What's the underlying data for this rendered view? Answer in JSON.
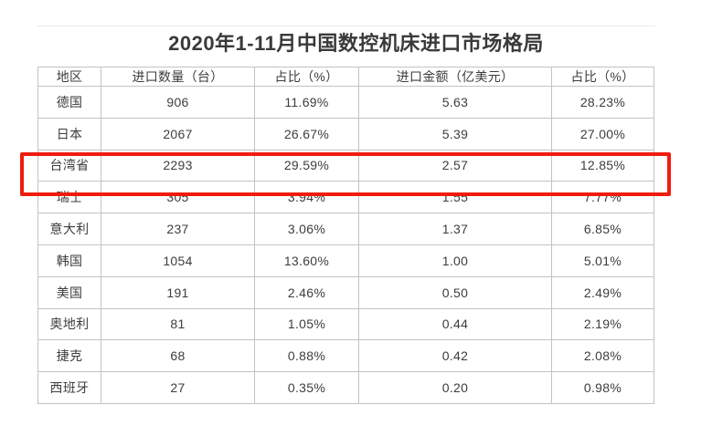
{
  "title": "2020年1-11月中国数控机床进口市场格局",
  "colors": {
    "highlight_border": "#ee1c0f",
    "table_border": "#c3c3c3",
    "text": "#3d3d3d"
  },
  "chart_data": {
    "type": "table",
    "title": "2020年1-11月中国数控机床进口市场格局",
    "columns": [
      "地区",
      "进口数量（台）",
      "占比（%）",
      "进口金额（亿美元）",
      "占比（%）"
    ],
    "rows": [
      [
        "德国",
        "906",
        "11.69%",
        "5.63",
        "28.23%"
      ],
      [
        "日本",
        "2067",
        "26.67%",
        "5.39",
        "27.00%"
      ],
      [
        "台湾省",
        "2293",
        "29.59%",
        "2.57",
        "12.85%"
      ],
      [
        "瑞士",
        "305",
        "3.94%",
        "1.55",
        "7.77%"
      ],
      [
        "意大利",
        "237",
        "3.06%",
        "1.37",
        "6.85%"
      ],
      [
        "韩国",
        "1054",
        "13.60%",
        "1.00",
        "5.01%"
      ],
      [
        "美国",
        "191",
        "2.46%",
        "0.50",
        "2.49%"
      ],
      [
        "奥地利",
        "81",
        "1.05%",
        "0.44",
        "2.19%"
      ],
      [
        "捷克",
        "68",
        "0.88%",
        "0.42",
        "2.08%"
      ],
      [
        "西班牙",
        "27",
        "0.35%",
        "0.20",
        "0.98%"
      ]
    ],
    "highlighted_row": "台湾省",
    "layout_hints": {
      "grid": "all-borders",
      "highlight": "red box around 台湾省 row"
    }
  }
}
